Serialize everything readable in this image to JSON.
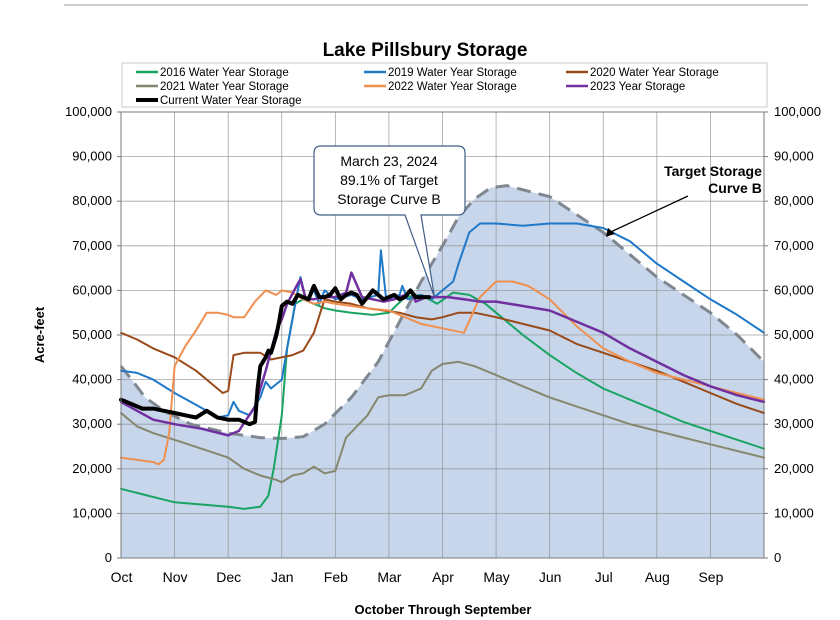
{
  "chart_data": {
    "type": "line",
    "title": "Lake Pillsbury Storage",
    "xlabel": "October Through September",
    "ylabel": "Acre-feet",
    "x_domain": [
      0,
      12
    ],
    "ylim": [
      0,
      100000
    ],
    "y_ticks": [
      0,
      10000,
      20000,
      30000,
      40000,
      50000,
      60000,
      70000,
      80000,
      90000,
      100000
    ],
    "y_tick_labels": [
      "0",
      "10,000",
      "20,000",
      "30,000",
      "40,000",
      "50,000",
      "60,000",
      "70,000",
      "80,000",
      "90,000",
      "100,000"
    ],
    "categories": [
      "Oct",
      "Nov",
      "Dec",
      "Jan",
      "Feb",
      "Mar",
      "Apr",
      "May",
      "Jun",
      "Jul",
      "Aug",
      "Sep"
    ],
    "grid": true,
    "legend_position": "top",
    "target": {
      "name": "Target Storage Curve B",
      "label_lines": [
        "Target Storage",
        "Curve B"
      ],
      "color": "#c7d6ea",
      "edge_color": "#7f8790",
      "x": [
        0,
        0.2,
        0.45,
        0.8,
        1.3,
        2.0,
        2.6,
        3.0,
        3.4,
        3.8,
        4.3,
        4.8,
        5.2,
        5.6,
        6.0,
        6.3,
        6.6,
        6.9,
        7.2,
        8.0,
        9.0,
        10.0,
        11.0,
        11.5,
        12.0
      ],
      "values": [
        43000,
        40000,
        36000,
        33000,
        30000,
        28000,
        27000,
        26800,
        27200,
        30000,
        36000,
        44000,
        53000,
        62000,
        70000,
        76500,
        80500,
        83000,
        83500,
        81000,
        73000,
        63000,
        55000,
        50000,
        44000
      ]
    },
    "series": [
      {
        "name": "2016 Water Year Storage",
        "color": "#19a463",
        "width": 2,
        "x": [
          0,
          0.5,
          1.0,
          1.5,
          2.0,
          2.3,
          2.6,
          2.75,
          2.85,
          3.0,
          3.1,
          3.25,
          3.4,
          3.6,
          3.8,
          4.0,
          4.3,
          4.7,
          5.0,
          5.3,
          5.6,
          5.9,
          6.2,
          6.5,
          6.8,
          7.0,
          7.5,
          8.0,
          8.5,
          9.0,
          9.5,
          10.0,
          10.5,
          11.0,
          11.5,
          12.0
        ],
        "values": [
          15500,
          14000,
          12500,
          12000,
          11500,
          11000,
          11500,
          14000,
          20000,
          32000,
          47000,
          57000,
          58000,
          57000,
          56000,
          55500,
          55000,
          54500,
          55000,
          58500,
          59000,
          57000,
          59500,
          59000,
          57000,
          55000,
          50000,
          45500,
          41500,
          38000,
          35500,
          33000,
          30500,
          28500,
          26500,
          24500
        ]
      },
      {
        "name": "2019 Water Year Storage",
        "color": "#1f78c8",
        "width": 2,
        "x": [
          0,
          0.3,
          0.6,
          1.0,
          1.3,
          1.6,
          1.8,
          2.0,
          2.1,
          2.2,
          2.4,
          2.6,
          2.7,
          2.8,
          3.0,
          3.1,
          3.3,
          3.35,
          3.45,
          3.6,
          3.7,
          3.8,
          4.0,
          4.3,
          4.5,
          4.8,
          4.85,
          4.95,
          5.2,
          5.25,
          5.35,
          5.6,
          5.8,
          6.0,
          6.2,
          6.3,
          6.5,
          6.7,
          7.0,
          7.5,
          8.0,
          8.5,
          9.0,
          9.5,
          10.0,
          10.5,
          11.0,
          11.5,
          12.0
        ],
        "values": [
          42000,
          41500,
          40000,
          37000,
          35000,
          33000,
          31500,
          32000,
          35000,
          33000,
          32000,
          36000,
          39500,
          38000,
          40000,
          47000,
          60000,
          63000,
          58000,
          60000,
          57000,
          60000,
          58000,
          59000,
          58000,
          59000,
          69000,
          58000,
          59000,
          61000,
          58000,
          59000,
          58000,
          60000,
          62000,
          66000,
          73000,
          75000,
          75000,
          74500,
          75000,
          75000,
          74000,
          71000,
          66000,
          62000,
          58000,
          54500,
          50500
        ]
      },
      {
        "name": "2020 Water Year Storage",
        "color": "#9a4a18",
        "width": 2,
        "x": [
          0,
          0.3,
          0.6,
          1.0,
          1.4,
          1.7,
          1.9,
          2.0,
          2.1,
          2.3,
          2.6,
          2.8,
          3.0,
          3.2,
          3.4,
          3.6,
          3.8,
          4.0,
          4.3,
          4.6,
          4.9,
          5.2,
          5.5,
          5.8,
          6.0,
          6.3,
          6.6,
          7.0,
          7.5,
          8.0,
          8.5,
          9.0,
          9.5,
          10.0,
          10.5,
          11.0,
          11.5,
          12.0
        ],
        "values": [
          50500,
          49000,
          47000,
          45000,
          42000,
          39000,
          37000,
          37500,
          45500,
          46000,
          46000,
          44500,
          45000,
          45500,
          46500,
          50500,
          58000,
          57500,
          57000,
          56000,
          55500,
          55000,
          54000,
          53500,
          54000,
          55000,
          55000,
          54000,
          52500,
          51000,
          48000,
          46000,
          44000,
          42000,
          39500,
          37000,
          34500,
          32500
        ]
      },
      {
        "name": "2021 Water Year Storage",
        "color": "#85876e",
        "width": 2,
        "x": [
          0,
          0.3,
          0.6,
          1.0,
          1.5,
          2.0,
          2.3,
          2.6,
          2.9,
          3.0,
          3.2,
          3.4,
          3.6,
          3.8,
          4.0,
          4.2,
          4.4,
          4.6,
          4.8,
          5.0,
          5.3,
          5.6,
          5.8,
          6.0,
          6.3,
          6.6,
          7.0,
          7.5,
          8.0,
          8.5,
          9.0,
          9.5,
          10.0,
          10.5,
          11.0,
          11.5,
          12.0
        ],
        "values": [
          32500,
          29500,
          28000,
          26500,
          24500,
          22500,
          20000,
          18500,
          17500,
          17000,
          18500,
          19000,
          20500,
          19000,
          19500,
          27000,
          29500,
          32000,
          36000,
          36500,
          36500,
          38000,
          42000,
          43500,
          44000,
          43000,
          41000,
          38500,
          36000,
          34000,
          32000,
          30000,
          28500,
          27000,
          25500,
          24000,
          22500
        ]
      },
      {
        "name": "2022 Water Year Storage",
        "color": "#f09050",
        "width": 2,
        "x": [
          0,
          0.3,
          0.6,
          0.7,
          0.8,
          0.9,
          1.0,
          1.2,
          1.4,
          1.6,
          1.8,
          2.0,
          2.1,
          2.3,
          2.5,
          2.7,
          2.9,
          3.0,
          3.2,
          3.4,
          3.6,
          3.8,
          4.0,
          4.3,
          4.6,
          5.0,
          5.3,
          5.6,
          6.0,
          6.4,
          6.7,
          7.0,
          7.3,
          7.6,
          8.0,
          8.5,
          9.0,
          9.5,
          10.0,
          10.5,
          11.0,
          11.5,
          12.0
        ],
        "values": [
          22500,
          22000,
          21500,
          21000,
          22000,
          28000,
          43000,
          47500,
          51000,
          55000,
          55000,
          54500,
          54000,
          54000,
          57500,
          60000,
          59000,
          60000,
          59500,
          58000,
          57000,
          57500,
          57000,
          56500,
          56000,
          55500,
          54000,
          52500,
          51500,
          50500,
          58500,
          62000,
          62000,
          61000,
          58000,
          52000,
          47000,
          44000,
          41500,
          40000,
          38500,
          37000,
          35500
        ]
      },
      {
        "name": "2023 Year Storage",
        "color": "#7030a0",
        "width": 2.5,
        "x": [
          0,
          0.3,
          0.6,
          1.0,
          1.5,
          2.0,
          2.2,
          2.5,
          2.7,
          2.9,
          3.0,
          3.1,
          3.3,
          3.35,
          3.45,
          3.6,
          3.8,
          4.0,
          4.2,
          4.3,
          4.5,
          4.7,
          4.9,
          5.1,
          5.3,
          5.4,
          5.5,
          5.7,
          5.9,
          6.1,
          6.4,
          6.7,
          7.0,
          7.5,
          8.0,
          8.5,
          9.0,
          9.5,
          10.0,
          10.5,
          11.0,
          11.5,
          12.0
        ],
        "values": [
          35000,
          33000,
          31000,
          30000,
          29000,
          27500,
          28500,
          34000,
          42000,
          51000,
          53500,
          57000,
          61500,
          62500,
          58000,
          58000,
          58500,
          58500,
          59500,
          64000,
          58500,
          58000,
          57500,
          58000,
          59000,
          60000,
          57500,
          58500,
          58500,
          58500,
          58000,
          57500,
          57500,
          56500,
          55500,
          53000,
          50500,
          47000,
          44000,
          41000,
          38500,
          36500,
          35000
        ]
      },
      {
        "name": "Current Water Year Storage",
        "color": "#000000",
        "width": 4,
        "x": [
          0,
          0.2,
          0.4,
          0.6,
          0.8,
          1.0,
          1.2,
          1.4,
          1.6,
          1.8,
          2.0,
          2.2,
          2.4,
          2.5,
          2.55,
          2.6,
          2.7,
          2.75,
          2.8,
          2.85,
          2.9,
          2.95,
          3.0,
          3.1,
          3.2,
          3.3,
          3.4,
          3.5,
          3.6,
          3.7,
          3.8,
          3.9,
          4.0,
          4.1,
          4.2,
          4.3,
          4.4,
          4.5,
          4.6,
          4.7,
          4.8,
          4.9,
          5.0,
          5.1,
          5.2,
          5.3,
          5.4,
          5.5,
          5.6,
          5.7,
          5.75
        ],
        "values": [
          35500,
          34500,
          33500,
          33500,
          33000,
          32500,
          32000,
          31500,
          33000,
          31500,
          31000,
          31000,
          30000,
          30500,
          38000,
          43000,
          45000,
          46500,
          46000,
          48000,
          50000,
          53000,
          56500,
          57500,
          57000,
          59000,
          58500,
          58000,
          61000,
          58500,
          58500,
          59000,
          60500,
          58000,
          59000,
          59500,
          59000,
          57000,
          58500,
          60000,
          59000,
          58000,
          58500,
          59000,
          58000,
          58500,
          60000,
          58500,
          58500,
          58500,
          58500
        ]
      }
    ],
    "annotation": {
      "lines": [
        "March 23, 2024",
        "89.1% of Target",
        "Storage Curve B"
      ],
      "pointer_x": 5.85,
      "pointer_y": 58500
    },
    "target_label_pointer": [
      9.05,
      72000
    ]
  }
}
